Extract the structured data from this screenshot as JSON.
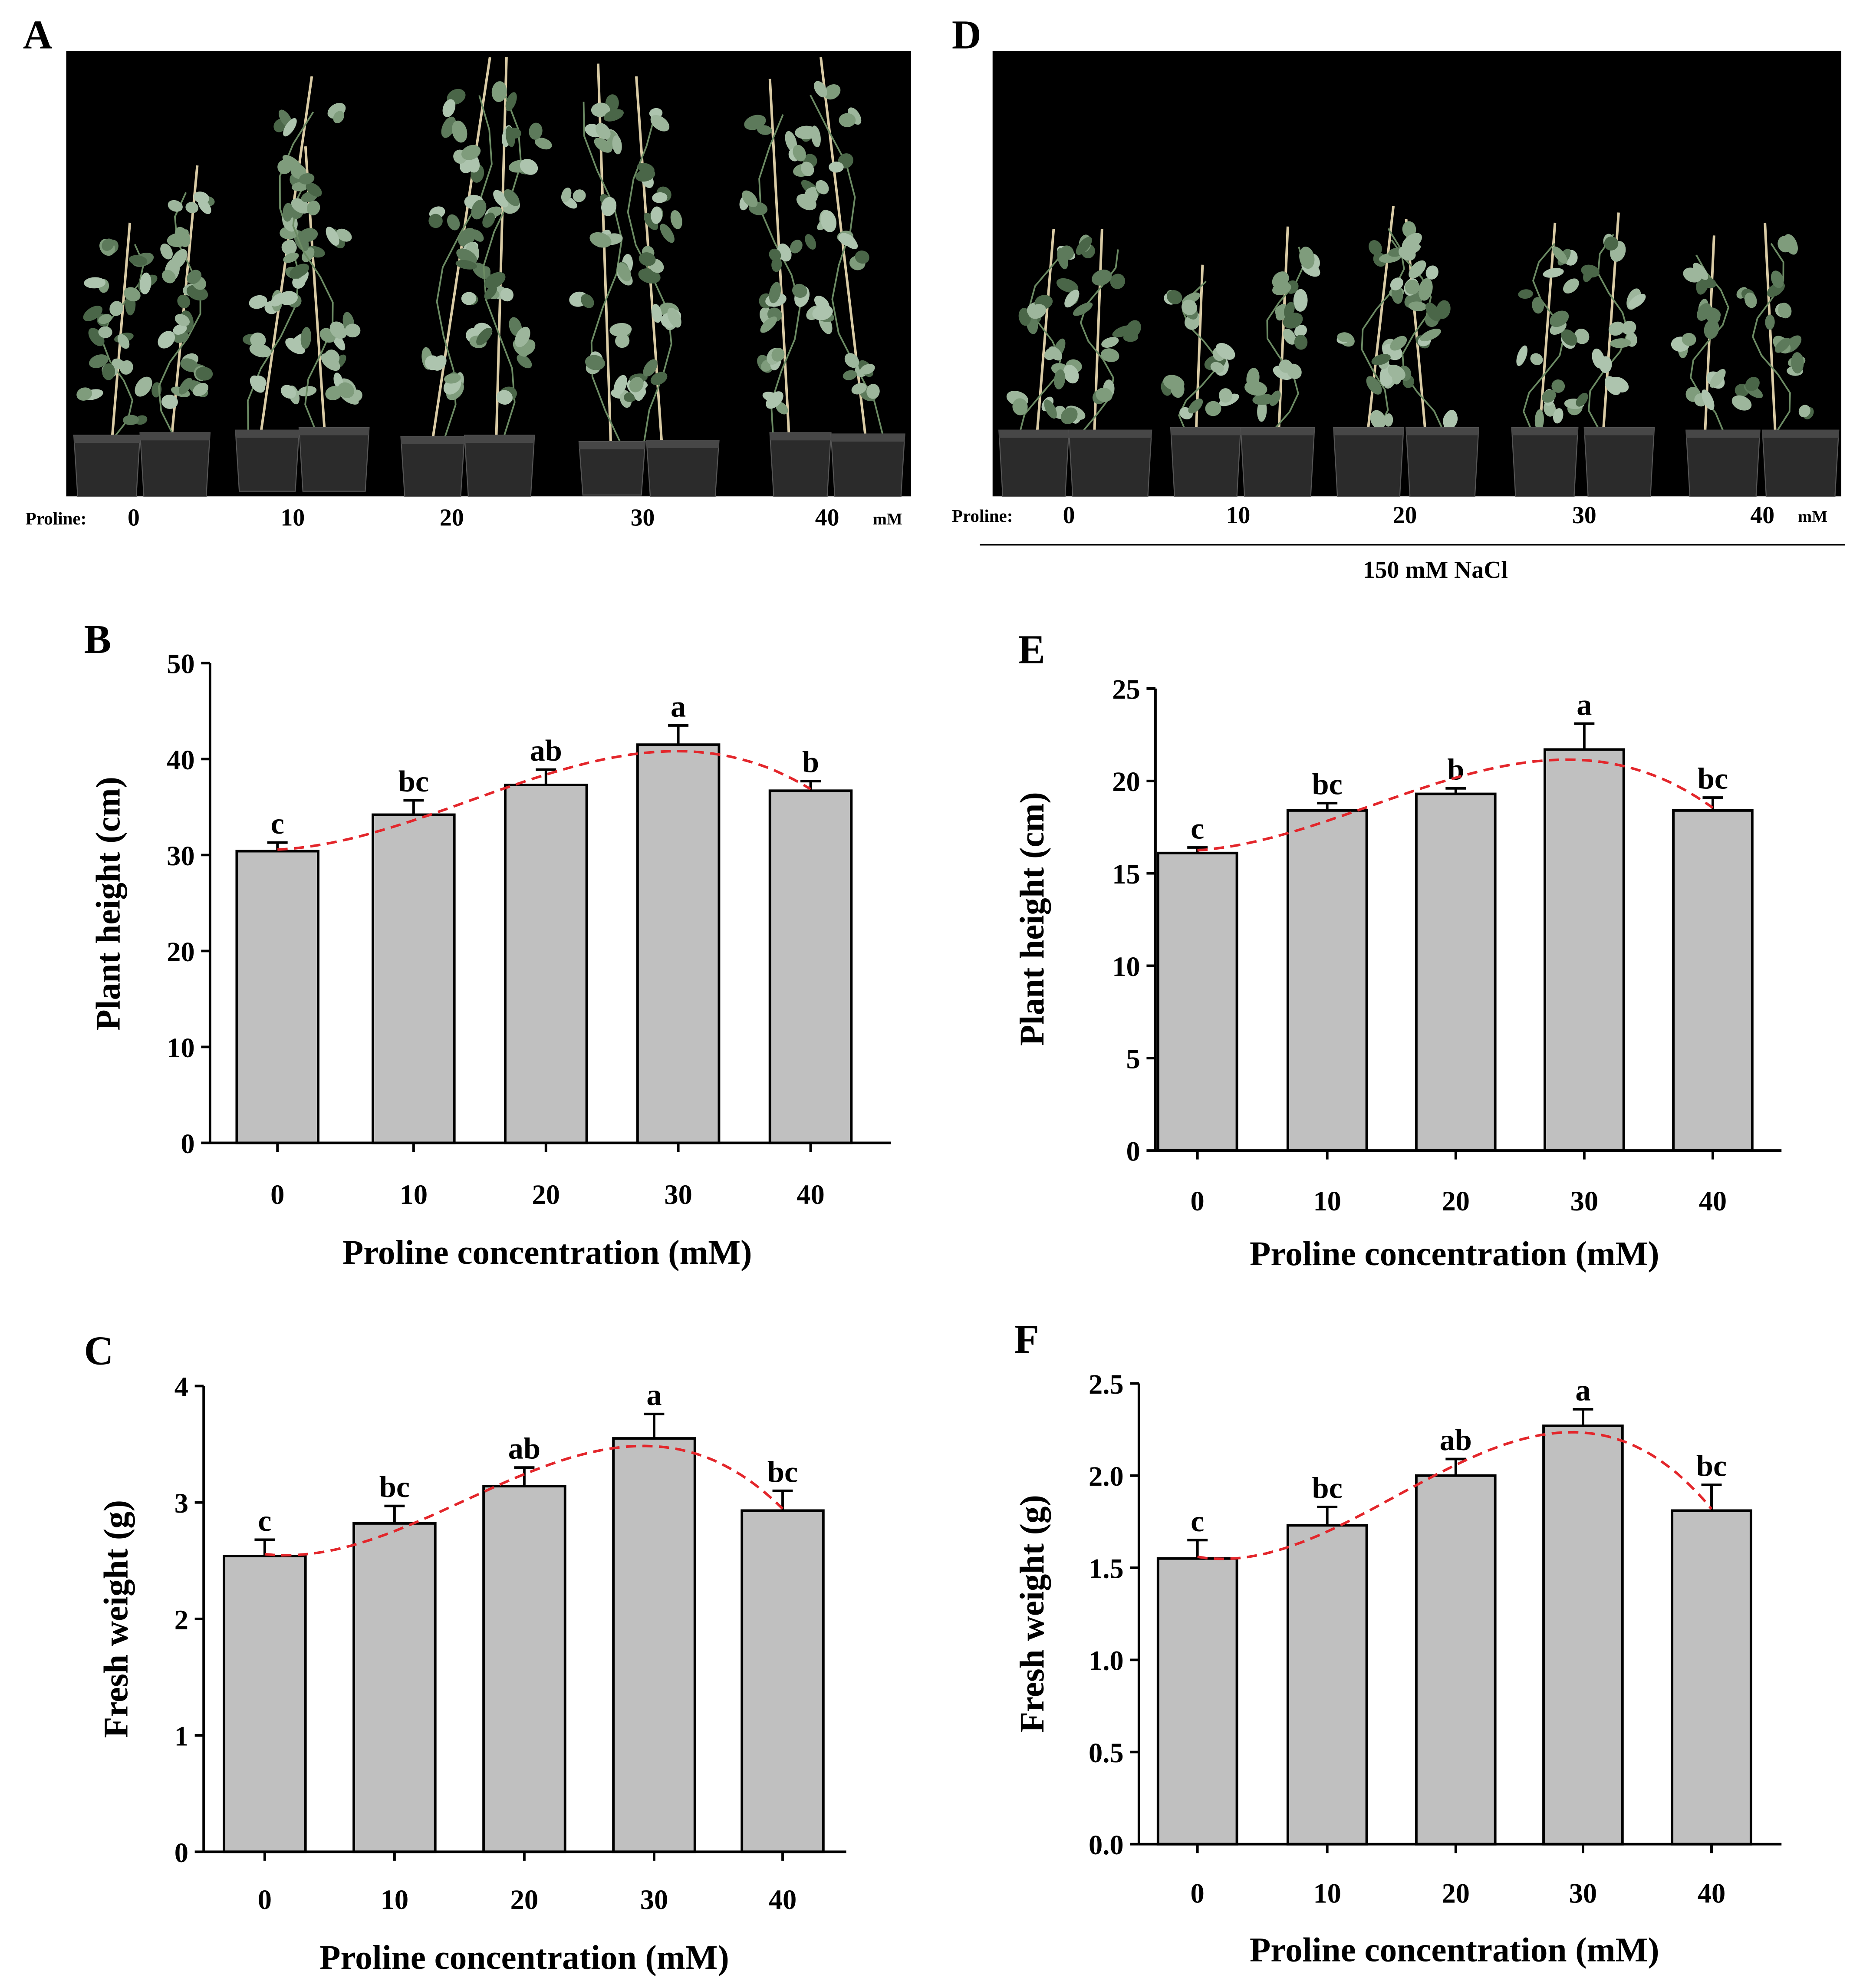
{
  "figure": {
    "panel_a": {
      "label": "A",
      "proline_label": "Proline:",
      "concentrations": [
        "0",
        "10",
        "20",
        "30",
        "40"
      ],
      "unit": "mM"
    },
    "panel_d": {
      "label": "D",
      "proline_label": "Proline:",
      "concentrations": [
        "0",
        "10",
        "20",
        "30",
        "40"
      ],
      "unit": "mM",
      "treatment": "150 mM NaCl"
    }
  },
  "colors": {
    "bar": "#c0c0c0",
    "trend": "#e3262b",
    "axis": "#000000",
    "photo_background": "#000000",
    "stake": "#d9cba5",
    "pot": "#2b2b2b",
    "pot_rim": "#474747",
    "leaves": [
      "#5d7a5b",
      "#7f9c7c",
      "#9db69c",
      "#4a6648",
      "#adc4ae"
    ]
  },
  "chart_data": [
    {
      "panel": "B",
      "type": "bar",
      "categories": [
        "0",
        "10",
        "20",
        "30",
        "40"
      ],
      "values": [
        30.4,
        34.2,
        37.3,
        41.5,
        36.7
      ],
      "error": [
        0.9,
        1.5,
        1.6,
        2.0,
        1.0
      ],
      "significance": [
        "c",
        "bc",
        "ab",
        "a",
        "b"
      ],
      "xlabel": "Proline concentration (mM)",
      "ylabel": "Plant height (cm)",
      "ylim": [
        0,
        50
      ],
      "yticks": [
        "0",
        "10",
        "20",
        "30",
        "40",
        "50"
      ],
      "trendline": true
    },
    {
      "panel": "E",
      "type": "bar",
      "categories": [
        "0",
        "10",
        "20",
        "30",
        "40"
      ],
      "values": [
        16.1,
        18.4,
        19.3,
        21.7,
        18.4
      ],
      "error": [
        0.3,
        0.4,
        0.3,
        1.4,
        0.7
      ],
      "significance": [
        "c",
        "bc",
        "b",
        "a",
        "bc"
      ],
      "xlabel": "Proline concentration (mM)",
      "ylabel": "Plant height (cm)",
      "ylim": [
        0,
        25
      ],
      "yticks": [
        "0",
        "5",
        "10",
        "15",
        "20",
        "25"
      ],
      "trendline": true
    },
    {
      "panel": "C",
      "type": "bar",
      "categories": [
        "0",
        "10",
        "20",
        "30",
        "40"
      ],
      "values": [
        2.54,
        2.82,
        3.14,
        3.55,
        2.93
      ],
      "error": [
        0.14,
        0.15,
        0.16,
        0.21,
        0.17
      ],
      "significance": [
        "c",
        "bc",
        "ab",
        "a",
        "bc"
      ],
      "xlabel": "Proline concentration (mM)",
      "ylabel": "Fresh weight (g)",
      "ylim": [
        0,
        4
      ],
      "yticks": [
        "0",
        "1",
        "2",
        "3",
        "4"
      ],
      "trendline": true
    },
    {
      "panel": "F",
      "type": "bar",
      "categories": [
        "0",
        "10",
        "20",
        "30",
        "40"
      ],
      "values": [
        1.55,
        1.73,
        2.0,
        2.27,
        1.81
      ],
      "error": [
        0.1,
        0.1,
        0.09,
        0.09,
        0.14
      ],
      "significance": [
        "c",
        "bc",
        "ab",
        "a",
        "bc"
      ],
      "xlabel": "Proline concentration (mM)",
      "ylabel": "Fresh weight (g)",
      "ylim": [
        0,
        2.5
      ],
      "yticks": [
        "0.0",
        "0.5",
        "1.0",
        "1.5",
        "2.0",
        "2.5"
      ],
      "trendline": true
    }
  ]
}
